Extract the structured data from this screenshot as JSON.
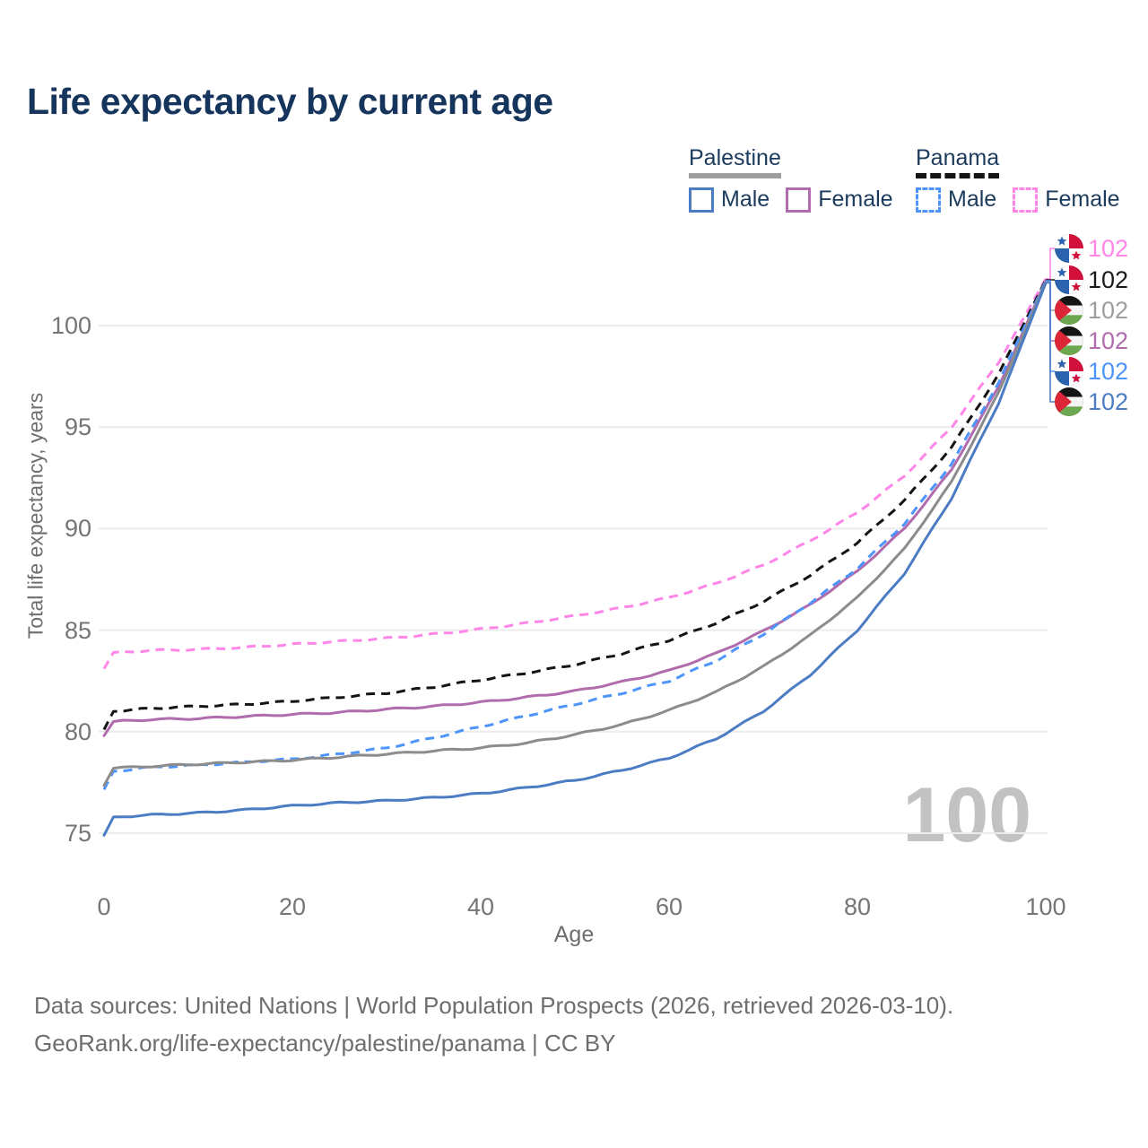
{
  "title": "Life expectancy by current age",
  "legend": {
    "groups": [
      {
        "name": "Palestine",
        "line_style": "solid",
        "underline_color": "#9e9e9e",
        "items": [
          {
            "label": "Male",
            "color": "#4C7DC4"
          },
          {
            "label": "Female",
            "color": "#B06CAC"
          }
        ]
      },
      {
        "name": "Panama",
        "line_style": "dashed",
        "underline_color": "#141414",
        "items": [
          {
            "label": "Male",
            "color": "#4D94FB"
          },
          {
            "label": "Female",
            "color": "#FF85E8"
          }
        ]
      }
    ]
  },
  "chart_data": {
    "type": "line",
    "title": "Life expectancy by current age",
    "xlabel": "Age",
    "ylabel": "Total life expectancy, years",
    "xlim": [
      0,
      100
    ],
    "ylim": [
      73,
      103
    ],
    "x_ticks": [
      0,
      20,
      40,
      60,
      80,
      100
    ],
    "y_ticks": [
      75,
      80,
      85,
      90,
      95,
      100
    ],
    "grid": "horizontal",
    "legend_position": "top-right",
    "watermark": "100",
    "x": [
      0,
      1,
      5,
      10,
      15,
      20,
      25,
      30,
      35,
      40,
      45,
      50,
      55,
      60,
      65,
      70,
      75,
      80,
      85,
      90,
      95,
      100
    ],
    "series": [
      {
        "name": "Panama Female",
        "country": "panama",
        "sex": "female",
        "color": "#FF85E8",
        "dash": true,
        "values": [
          83.1,
          83.9,
          84.0,
          84.05,
          84.15,
          84.3,
          84.45,
          84.6,
          84.8,
          85.05,
          85.35,
          85.7,
          86.1,
          86.6,
          87.3,
          88.2,
          89.4,
          90.8,
          92.6,
          95.0,
          98.2,
          102.3
        ]
      },
      {
        "name": "Panama",
        "country": "panama",
        "sex": "both",
        "color": "#141414",
        "dash": true,
        "values": [
          80.1,
          81.0,
          81.15,
          81.25,
          81.35,
          81.5,
          81.7,
          81.9,
          82.2,
          82.55,
          82.9,
          83.3,
          83.85,
          84.5,
          85.35,
          86.4,
          87.7,
          89.3,
          91.4,
          94.0,
          97.6,
          102.25
        ]
      },
      {
        "name": "Palestine Female",
        "country": "palestine",
        "sex": "female",
        "color": "#B06CAC",
        "dash": false,
        "values": [
          79.8,
          80.5,
          80.6,
          80.65,
          80.75,
          80.85,
          80.95,
          81.1,
          81.25,
          81.45,
          81.7,
          82.0,
          82.45,
          83.0,
          83.85,
          84.95,
          86.25,
          87.9,
          90.0,
          92.9,
          97.0,
          102.2
        ]
      },
      {
        "name": "Panama Male",
        "country": "panama",
        "sex": "male",
        "color": "#4D94FB",
        "dash": true,
        "values": [
          77.15,
          78.05,
          78.25,
          78.35,
          78.5,
          78.65,
          78.9,
          79.2,
          79.7,
          80.25,
          80.8,
          81.35,
          81.9,
          82.5,
          83.5,
          84.8,
          86.35,
          88.05,
          90.25,
          93.2,
          97.2,
          102.2
        ]
      },
      {
        "name": "Palestine",
        "country": "palestine",
        "sex": "both",
        "color": "#8C8C8C",
        "dash": false,
        "values": [
          77.35,
          78.2,
          78.3,
          78.4,
          78.5,
          78.6,
          78.75,
          78.9,
          79.05,
          79.2,
          79.45,
          79.85,
          80.35,
          81.05,
          81.95,
          83.2,
          84.75,
          86.6,
          89.0,
          92.3,
          96.7,
          102.15
        ]
      },
      {
        "name": "Palestine Male",
        "country": "palestine",
        "sex": "male",
        "color": "#4C7DC4",
        "dash": false,
        "values": [
          74.9,
          75.8,
          75.9,
          76.0,
          76.15,
          76.35,
          76.5,
          76.6,
          76.75,
          76.95,
          77.25,
          77.6,
          78.1,
          78.7,
          79.65,
          81.0,
          82.8,
          85.0,
          87.8,
          91.5,
          96.2,
          102.1
        ]
      }
    ],
    "end_labels": [
      {
        "country": "panama",
        "value": "102",
        "color": "#FF85E8",
        "series_index": 0
      },
      {
        "country": "panama",
        "value": "102",
        "color": "#1a1a1a",
        "series_index": 1
      },
      {
        "country": "palestine",
        "value": "102",
        "color": "#9e9e9e",
        "series_index": 4
      },
      {
        "country": "palestine",
        "value": "102",
        "color": "#B06CAC",
        "series_index": 2
      },
      {
        "country": "panama",
        "value": "102",
        "color": "#4D94FB",
        "series_index": 3
      },
      {
        "country": "palestine",
        "value": "102",
        "color": "#4C7DC4",
        "series_index": 5
      }
    ]
  },
  "footer": {
    "line1": "Data sources: United Nations | World Population Prospects (2026, retrieved 2026-03-10).",
    "line2": "GeoRank.org/life-expectancy/palestine/panama | CC BY"
  }
}
